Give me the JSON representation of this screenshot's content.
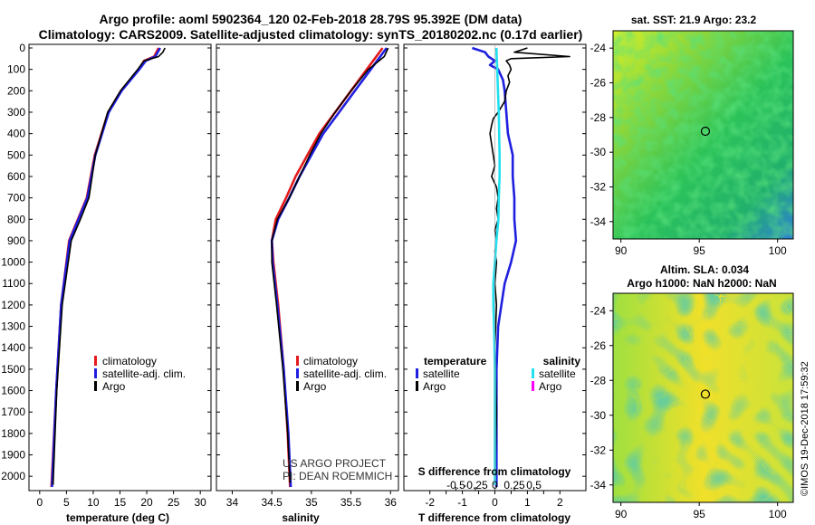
{
  "title": {
    "line1": "Argo profile: aoml 5902364_120 02-Feb-2018 28.79S 95.392E (DM data)",
    "line2": "Climatology: CARS2009. Satellite-adjusted climatology: synTS_20180202.nc (0.17d earlier)"
  },
  "colors": {
    "climatology": "#e41a1c",
    "satellite": "#1f1fe0",
    "argo": "#000000",
    "sat_salinity": "#22e0f0",
    "argo_salinity": "#ff00ff"
  },
  "depth_axis": {
    "min": 0,
    "max": 2050,
    "ticks": [
      0,
      100,
      200,
      300,
      400,
      500,
      600,
      700,
      800,
      900,
      1000,
      1100,
      1200,
      1300,
      1400,
      1500,
      1600,
      1700,
      1800,
      1900,
      2000
    ]
  },
  "legend": {
    "climatology": "climatology",
    "satellite_adj": "satellite-adj. clim.",
    "argo": "Argo",
    "temperature": "temperature",
    "salinity": "salinity",
    "satellite": "satellite"
  },
  "credits": {
    "line1": "US ARGO PROJECT",
    "line2": "PI: DEAN ROEMMICH"
  },
  "watermark": "©IMOS 19-Dec-2018 17:59:32",
  "chart_data": [
    {
      "type": "line",
      "name": "temperature",
      "xlabel": "temperature (deg C)",
      "xlim": [
        -2,
        32
      ],
      "xticks": [
        0,
        5,
        10,
        15,
        20,
        25,
        30
      ],
      "series": [
        {
          "name": "climatology",
          "depth": [
            0,
            40,
            60,
            100,
            200,
            300,
            500,
            700,
            900,
            1200,
            1600,
            2050
          ],
          "values": [
            22.2,
            21.4,
            19.5,
            18.5,
            15.2,
            12.8,
            10.3,
            8.8,
            5.5,
            4.0,
            3.1,
            2.2
          ]
        },
        {
          "name": "satellite-adj. clim.",
          "depth": [
            0,
            40,
            60,
            100,
            200,
            300,
            500,
            700,
            900,
            1200,
            1600,
            2050
          ],
          "values": [
            22.5,
            21.6,
            19.8,
            18.6,
            15.3,
            12.9,
            10.4,
            8.9,
            5.6,
            4.0,
            3.1,
            2.3
          ]
        },
        {
          "name": "Argo",
          "depth": [
            0,
            20,
            40,
            60,
            100,
            200,
            300,
            500,
            700,
            800,
            900,
            1200,
            1600,
            2040
          ],
          "values": [
            23.4,
            23.0,
            22.2,
            19.5,
            18.3,
            15.1,
            12.7,
            10.4,
            9.2,
            7.6,
            5.9,
            4.2,
            3.2,
            2.5
          ]
        }
      ]
    },
    {
      "type": "line",
      "name": "salinity",
      "xlabel": "salinity",
      "xlim": [
        33.8,
        36.1
      ],
      "xticks": [
        34,
        34.5,
        35,
        35.5,
        36
      ],
      "series": [
        {
          "name": "climatology",
          "depth": [
            0,
            50,
            100,
            200,
            300,
            400,
            500,
            600,
            700,
            800,
            900,
            1000,
            1200,
            1500,
            1800,
            2050
          ],
          "values": [
            35.9,
            35.8,
            35.7,
            35.5,
            35.3,
            35.1,
            34.95,
            34.8,
            34.68,
            34.55,
            34.5,
            34.52,
            34.58,
            34.65,
            34.7,
            34.73
          ]
        },
        {
          "name": "satellite-adj. clim.",
          "depth": [
            0,
            50,
            100,
            200,
            300,
            400,
            500,
            600,
            700,
            800,
            900,
            1000,
            1200,
            1500,
            1800,
            2050
          ],
          "values": [
            35.95,
            35.85,
            35.75,
            35.55,
            35.35,
            35.15,
            35.0,
            34.85,
            34.72,
            34.58,
            34.5,
            34.51,
            34.57,
            34.65,
            34.71,
            34.74
          ]
        },
        {
          "name": "Argo",
          "depth": [
            0,
            40,
            100,
            200,
            300,
            400,
            500,
            600,
            700,
            800,
            900,
            1000,
            1200,
            1500,
            1800,
            2030
          ],
          "values": [
            35.97,
            35.92,
            35.72,
            35.5,
            35.3,
            35.12,
            34.98,
            34.85,
            34.72,
            34.57,
            34.5,
            34.5,
            34.56,
            34.64,
            34.7,
            34.73
          ]
        }
      ]
    },
    {
      "type": "line",
      "name": "differences",
      "xlabel": "T difference from climatology",
      "x2label": "S difference from climatology",
      "xlim": [
        -2.8,
        2.8
      ],
      "xticks": [
        -2,
        -1.5,
        -1,
        -0.5,
        0,
        0.5,
        1,
        1.5,
        2
      ],
      "xticklabels": [
        "-2",
        "",
        "-1",
        "",
        "0",
        "",
        "1",
        "",
        "2"
      ],
      "x2ticks": [
        -0.5,
        -0.25,
        0,
        0.25,
        0.5
      ],
      "x2ticklabels": [
        "-0.5",
        "-0.25",
        "0",
        "0.25",
        "0.5"
      ],
      "series": [
        {
          "name": "temperature satellite",
          "depth": [
            0,
            20,
            40,
            60,
            80,
            100,
            150,
            200,
            300,
            400,
            500,
            600,
            700,
            800,
            900,
            1000,
            1100,
            1300,
            1500,
            1700,
            2050
          ],
          "values": [
            -0.7,
            -0.3,
            -0.2,
            0.0,
            -0.15,
            0.1,
            0.25,
            0.3,
            0.35,
            0.4,
            0.55,
            0.55,
            0.6,
            0.6,
            0.65,
            0.5,
            0.3,
            0.1,
            0.05,
            0.05,
            0.05
          ]
        },
        {
          "name": "temperature Argo",
          "depth": [
            0,
            20,
            40,
            50,
            60,
            80,
            100,
            130,
            160,
            200,
            250,
            300,
            330,
            360,
            400,
            450,
            500,
            550,
            600,
            650,
            700,
            750,
            800,
            850,
            900,
            950,
            1000,
            1100,
            1200,
            1400,
            1700,
            2040
          ],
          "values": [
            1.0,
            0.6,
            2.3,
            0.5,
            0.35,
            0.45,
            0.5,
            0.4,
            0.45,
            0.35,
            0.3,
            0.1,
            -0.05,
            -0.1,
            -0.15,
            -0.1,
            -0.05,
            0.0,
            -0.1,
            0.05,
            0.1,
            0.05,
            0.1,
            0.0,
            0.05,
            0.0,
            0.05,
            0.0,
            0.05,
            0.0,
            0.05,
            0.0
          ]
        },
        {
          "name": "salinity satellite",
          "depth": [
            0,
            100,
            200,
            300,
            400,
            500,
            600,
            700,
            800,
            900,
            1000,
            1100,
            1200,
            1300,
            1500,
            1700,
            2040
          ],
          "values": [
            0.02,
            0.03,
            0.04,
            0.05,
            0.055,
            0.06,
            0.06,
            0.05,
            0.045,
            0.02,
            0.0,
            -0.02,
            -0.02,
            -0.01,
            0.0,
            0.0,
            0.0
          ]
        },
        {
          "name": "salinity Argo",
          "depth": [],
          "values": []
        }
      ]
    },
    {
      "type": "heatmap",
      "name": "sst_map",
      "title": "sat. SST: 21.9 Argo: 23.2",
      "xlim": [
        89.5,
        101
      ],
      "ylim": [
        -35,
        -23
      ],
      "xticks": [
        90,
        95,
        100
      ],
      "yticks": [
        -24,
        -26,
        -28,
        -30,
        -32,
        -34
      ],
      "marker": {
        "lon": 95.392,
        "lat": -28.79
      }
    },
    {
      "type": "heatmap",
      "name": "sla_map",
      "title": "Altim. SLA: 0.034",
      "subtitle": "Argo h1000: NaN h2000: NaN",
      "xlim": [
        89.5,
        101
      ],
      "ylim": [
        -35,
        -23
      ],
      "xticks": [
        90,
        95,
        100
      ],
      "yticks": [
        -24,
        -26,
        -28,
        -30,
        -32,
        -34
      ],
      "marker": {
        "lon": 95.392,
        "lat": -28.79
      }
    }
  ]
}
